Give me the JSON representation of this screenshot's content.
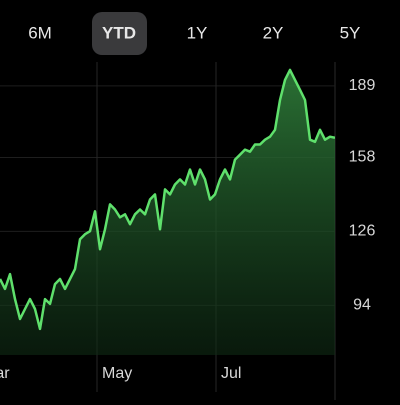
{
  "tabs": {
    "items": [
      "6M",
      "YTD",
      "1Y",
      "2Y",
      "5Y"
    ],
    "selected": 1
  },
  "chart_data": {
    "type": "line",
    "color": "#5fe06c",
    "values": [
      105.4,
      101.1,
      107.5,
      96.7,
      88.1,
      92.4,
      96.7,
      92.4,
      83.8,
      96.7,
      94.6,
      103.2,
      105.4,
      101.1,
      105.4,
      109.7,
      122.6,
      124.8,
      126.1,
      134.7,
      118.3,
      126.9,
      137.7,
      135.5,
      132.1,
      133.4,
      129.1,
      133.4,
      135.5,
      133.4,
      139.8,
      142.0,
      126.9,
      144.2,
      142.0,
      146.3,
      148.5,
      146.3,
      152.8,
      146.3,
      152.8,
      148.5,
      139.8,
      142.0,
      148.5,
      152.8,
      148.5,
      157.1,
      159.2,
      161.4,
      160.5,
      163.6,
      163.6,
      165.7,
      167.0,
      170.0,
      182.9,
      191.6,
      195.9,
      191.6,
      187.3,
      182.9,
      165.7,
      164.8,
      170.0,
      165.7,
      167.0,
      166.5
    ],
    "ylim": [
      72.5,
      197.6
    ],
    "yticks": [
      94,
      126,
      158,
      189
    ],
    "xticks": [
      {
        "value": -4.6,
        "label": "Mar"
      },
      {
        "value": 19.4,
        "label": "May"
      },
      {
        "value": 43.2,
        "label": "Jul"
      }
    ],
    "grid": true
  }
}
